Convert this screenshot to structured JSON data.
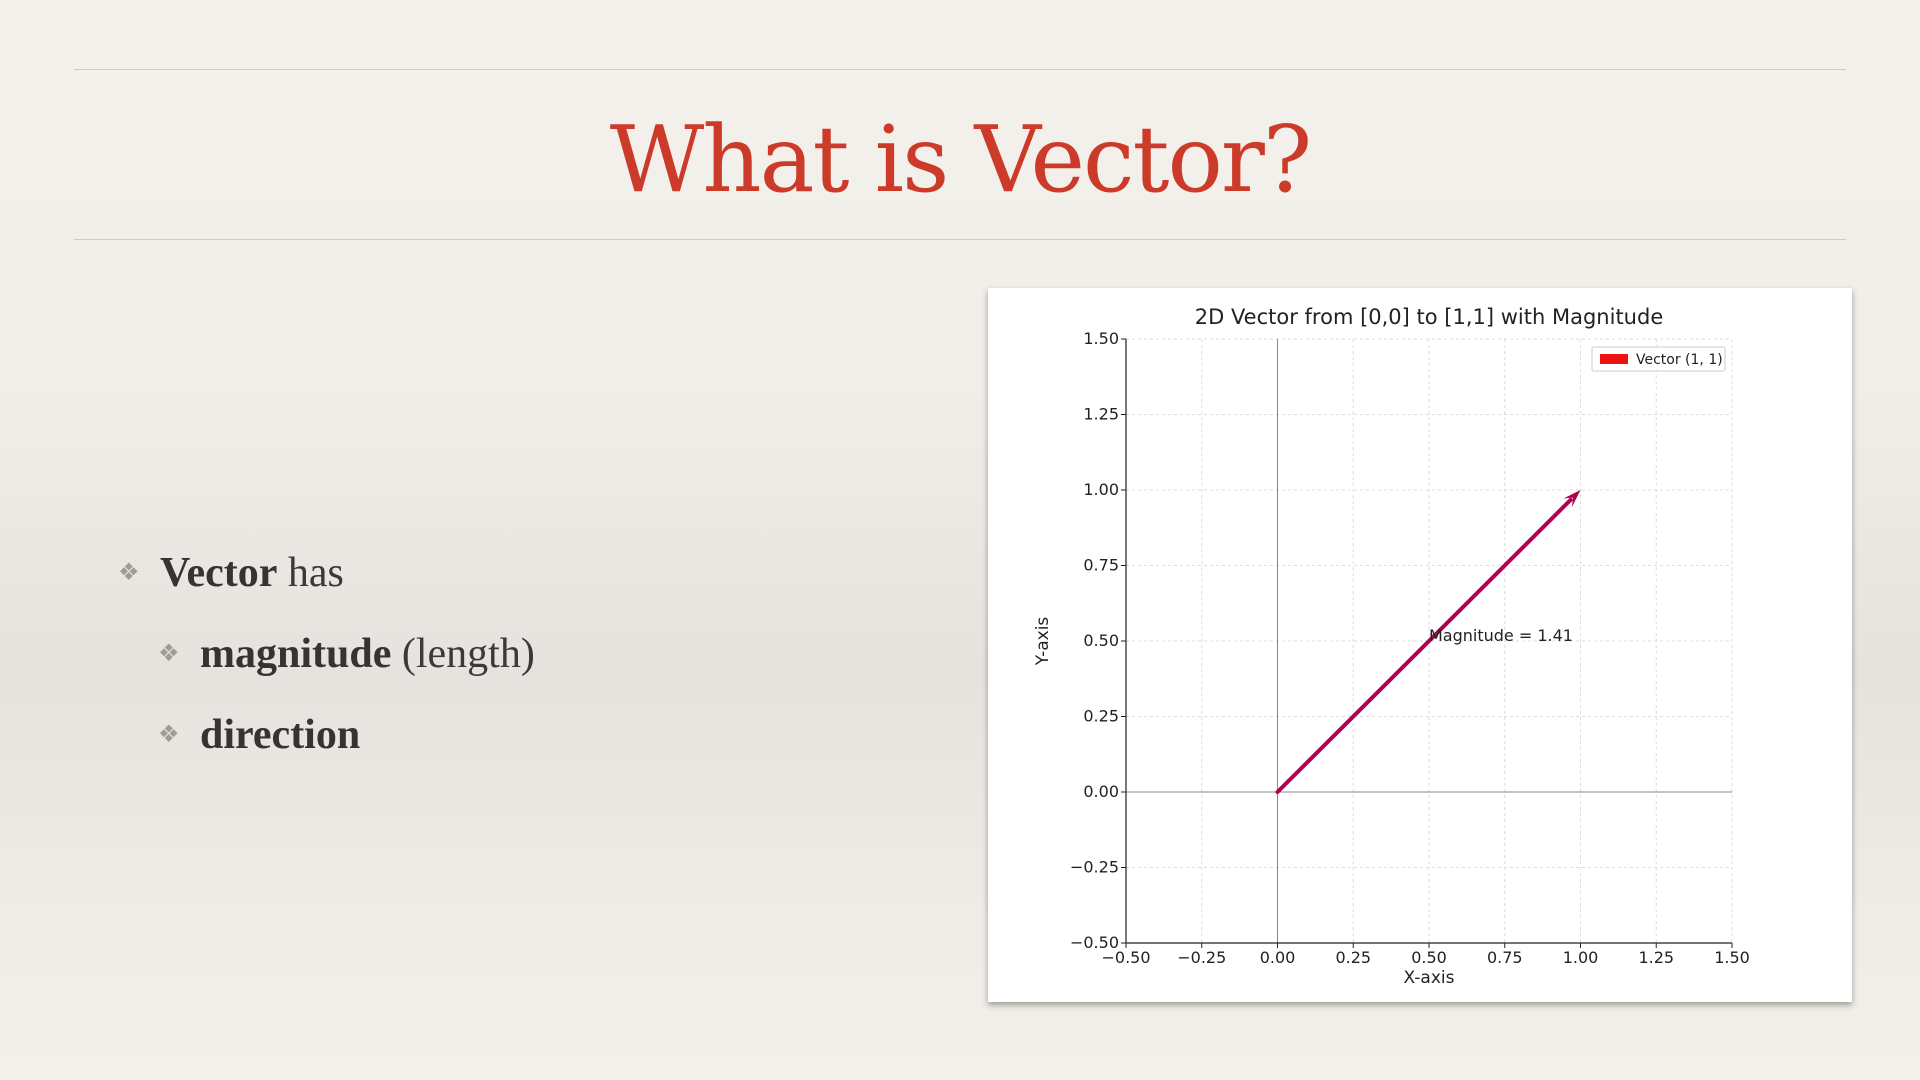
{
  "slide": {
    "title": "What is Vector?",
    "bullets": [
      {
        "bold": "Vector",
        "rest": " has",
        "level": 1
      },
      {
        "bold": "magnitude",
        "rest": " (length)",
        "level": 2
      },
      {
        "bold": "direction",
        "rest": "",
        "level": 2
      }
    ],
    "bullet_marker": "❖"
  },
  "chart_data": {
    "type": "line",
    "title": "2D Vector from [0,0] to [1,1] with Magnitude",
    "xlabel": "X-axis",
    "ylabel": "Y-axis",
    "xlim": [
      -0.5,
      1.5
    ],
    "ylim": [
      -0.5,
      1.5
    ],
    "xticks": [
      -0.5,
      -0.25,
      0.0,
      0.25,
      0.5,
      0.75,
      1.0,
      1.25,
      1.5
    ],
    "yticks": [
      -0.5,
      -0.25,
      0.0,
      0.25,
      0.5,
      0.75,
      1.0,
      1.25,
      1.5
    ],
    "xtick_labels": [
      "−0.50",
      "−0.25",
      "0.00",
      "0.25",
      "0.50",
      "0.75",
      "1.00",
      "1.25",
      "1.50"
    ],
    "ytick_labels": [
      "−0.50",
      "−0.25",
      "0.00",
      "0.25",
      "0.50",
      "0.75",
      "1.00",
      "1.25",
      "1.50"
    ],
    "grid": true,
    "vector": {
      "x0": 0,
      "y0": 0,
      "x1": 1,
      "y1": 1,
      "color": "#b0004e"
    },
    "annotation": {
      "text": "Magnitude = 1.41",
      "x": 0.5,
      "y": 0.5
    },
    "legend": {
      "label": "Vector (1, 1)",
      "color": "#ee1111",
      "placement": "top-right"
    }
  }
}
